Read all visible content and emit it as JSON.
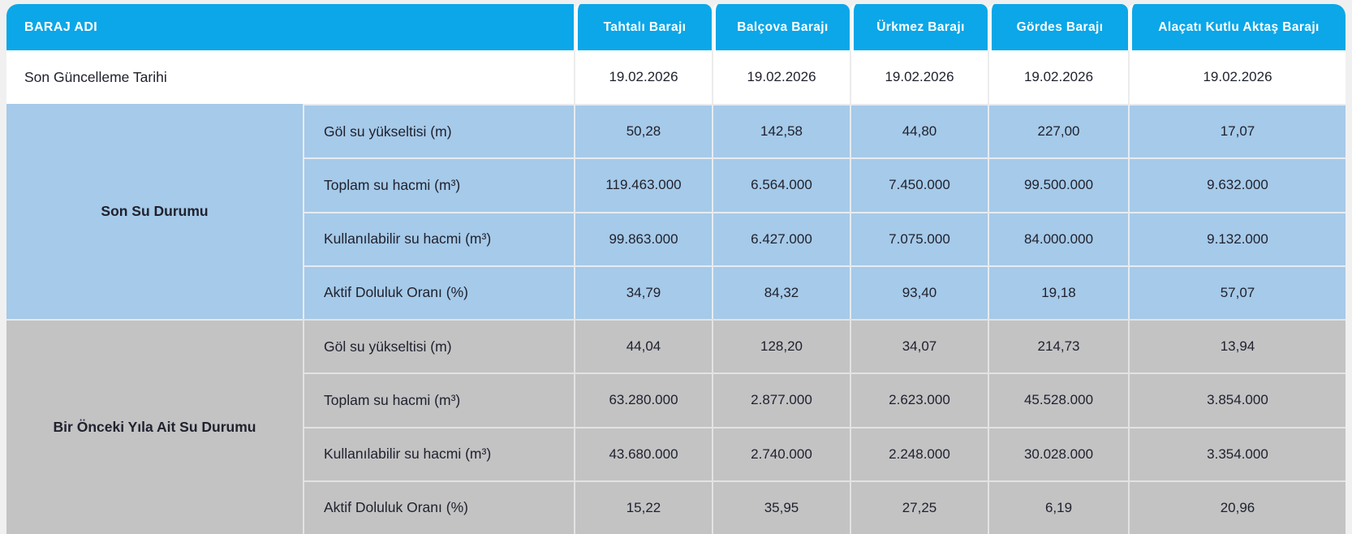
{
  "colors": {
    "header_blue": "#0ba7e8",
    "section_blue": "#a6cae9",
    "section_gray": "#c3c3c4",
    "page_background": "#f0f0f0",
    "text": "#20222e",
    "header_text": "#ffffff"
  },
  "table": {
    "header_label": "BARAJ ADI",
    "columns": [
      "Tahtalı Barajı",
      "Balçova Barajı",
      "Ürkmez Barajı",
      "Gördes Barajı",
      "Alaçatı Kutlu Aktaş Barajı"
    ],
    "update": {
      "label": "Son Güncelleme Tarihi",
      "values": [
        "19.02.2026",
        "19.02.2026",
        "19.02.2026",
        "19.02.2026",
        "19.02.2026"
      ]
    },
    "sections": [
      {
        "label": "Son Su Durumu",
        "rows": [
          {
            "label": "Göl su yükseltisi (m)",
            "values": [
              "50,28",
              "142,58",
              "44,80",
              "227,00",
              "17,07"
            ]
          },
          {
            "label": "Toplam su hacmi (m³)",
            "values": [
              "119.463.000",
              "6.564.000",
              "7.450.000",
              "99.500.000",
              "9.632.000"
            ]
          },
          {
            "label": "Kullanılabilir su hacmi (m³)",
            "values": [
              "99.863.000",
              "6.427.000",
              "7.075.000",
              "84.000.000",
              "9.132.000"
            ]
          },
          {
            "label": "Aktif Doluluk Oranı (%)",
            "values": [
              "34,79",
              "84,32",
              "93,40",
              "19,18",
              "57,07"
            ]
          }
        ]
      },
      {
        "label": "Bir Önceki Yıla Ait Su Durumu",
        "rows": [
          {
            "label": "Göl su yükseltisi (m)",
            "values": [
              "44,04",
              "128,20",
              "34,07",
              "214,73",
              "13,94"
            ]
          },
          {
            "label": "Toplam su hacmi (m³)",
            "values": [
              "63.280.000",
              "2.877.000",
              "2.623.000",
              "45.528.000",
              "3.854.000"
            ]
          },
          {
            "label": "Kullanılabilir su hacmi (m³)",
            "values": [
              "43.680.000",
              "2.740.000",
              "2.248.000",
              "30.028.000",
              "3.354.000"
            ]
          },
          {
            "label": "Aktif Doluluk Oranı (%)",
            "values": [
              "15,22",
              "35,95",
              "27,25",
              "6,19",
              "20,96"
            ]
          }
        ]
      }
    ]
  },
  "chart_data": {
    "type": "table",
    "title": "BARAJ ADI",
    "column_headers": [
      "Tahtalı Barajı",
      "Balçova Barajı",
      "Ürkmez Barajı",
      "Gördes Barajı",
      "Alaçatı Kutlu Aktaş Barajı"
    ],
    "rows": [
      {
        "section": "",
        "metric": "Son Güncelleme Tarihi",
        "values": [
          "19.02.2026",
          "19.02.2026",
          "19.02.2026",
          "19.02.2026",
          "19.02.2026"
        ]
      },
      {
        "section": "Son Su Durumu",
        "metric": "Göl su yükseltisi (m)",
        "values": [
          50.28,
          142.58,
          44.8,
          227.0,
          17.07
        ]
      },
      {
        "section": "Son Su Durumu",
        "metric": "Toplam su hacmi (m³)",
        "values": [
          119463000,
          6564000,
          7450000,
          99500000,
          9632000
        ]
      },
      {
        "section": "Son Su Durumu",
        "metric": "Kullanılabilir su hacmi (m³)",
        "values": [
          99863000,
          6427000,
          7075000,
          84000000,
          9132000
        ]
      },
      {
        "section": "Son Su Durumu",
        "metric": "Aktif Doluluk Oranı (%)",
        "values": [
          34.79,
          84.32,
          93.4,
          19.18,
          57.07
        ]
      },
      {
        "section": "Bir Önceki Yıla Ait Su Durumu",
        "metric": "Göl su yükseltisi (m)",
        "values": [
          44.04,
          128.2,
          34.07,
          214.73,
          13.94
        ]
      },
      {
        "section": "Bir Önceki Yıla Ait Su Durumu",
        "metric": "Toplam su hacmi (m³)",
        "values": [
          63280000,
          2877000,
          2623000,
          45528000,
          3854000
        ]
      },
      {
        "section": "Bir Önceki Yıla Ait Su Durumu",
        "metric": "Kullanılabilir su hacmi (m³)",
        "values": [
          43680000,
          2740000,
          2248000,
          30028000,
          3354000
        ]
      },
      {
        "section": "Bir Önceki Yıla Ait Su Durumu",
        "metric": "Aktif Doluluk Oranı (%)",
        "values": [
          15.22,
          35.95,
          27.25,
          6.19,
          20.96
        ]
      }
    ]
  }
}
